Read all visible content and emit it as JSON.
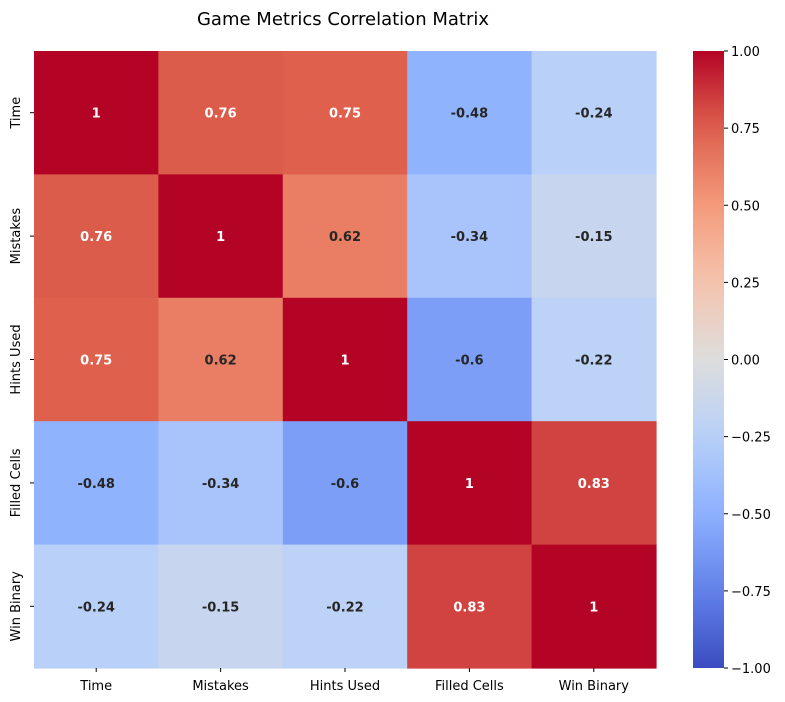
{
  "chart_data": {
    "type": "heatmap",
    "title": "Game Metrics Correlation Matrix",
    "x_labels": [
      "Time",
      "Mistakes",
      "Hints Used",
      "Filled Cells",
      "Win Binary"
    ],
    "y_labels": [
      "Time",
      "Mistakes",
      "Hints Used",
      "Filled Cells",
      "Win Binary"
    ],
    "values": [
      [
        1,
        0.76,
        0.75,
        -0.48,
        -0.24
      ],
      [
        0.76,
        1,
        0.62,
        -0.34,
        -0.15
      ],
      [
        0.75,
        0.62,
        1,
        -0.6,
        -0.22
      ],
      [
        -0.48,
        -0.34,
        -0.6,
        1,
        0.83
      ],
      [
        -0.24,
        -0.15,
        -0.22,
        0.83,
        1
      ]
    ],
    "cell_labels": [
      [
        "1",
        "0.76",
        "0.75",
        "-0.48",
        "-0.24"
      ],
      [
        "0.76",
        "1",
        "0.62",
        "-0.34",
        "-0.15"
      ],
      [
        "0.75",
        "0.62",
        "1",
        "-0.6",
        "-0.22"
      ],
      [
        "-0.48",
        "-0.34",
        "-0.6",
        "1",
        "0.83"
      ],
      [
        "-0.24",
        "-0.15",
        "-0.22",
        "0.83",
        "1"
      ]
    ],
    "colormap": "coolwarm",
    "vmin": -1.0,
    "vmax": 1.0,
    "colorbar_ticks": [
      "1.00",
      "0.75",
      "0.50",
      "0.25",
      "0.00",
      "−0.25",
      "−0.50",
      "−0.75",
      "−1.00"
    ],
    "colorbar_tick_values": [
      1.0,
      0.75,
      0.5,
      0.25,
      0.0,
      -0.25,
      -0.5,
      -0.75,
      -1.0
    ],
    "colorbar_placement": "right",
    "colors": {
      "low": "#3b4cc0",
      "mid": "#dddddd",
      "high": "#b40426"
    }
  }
}
